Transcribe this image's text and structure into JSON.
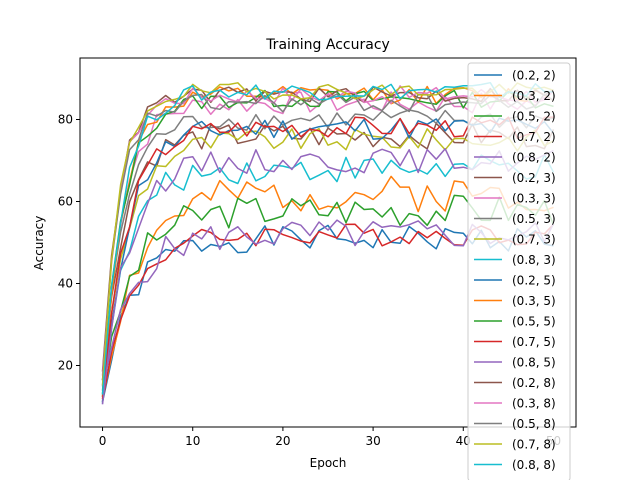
{
  "chart_data": {
    "type": "line",
    "title": "Training Accuracy",
    "xlabel": "Epoch",
    "ylabel": "Accuracy",
    "xlim": [
      -2.5,
      52.5
    ],
    "ylim": [
      5,
      95
    ],
    "xticks": [
      0,
      10,
      20,
      30,
      40,
      50
    ],
    "yticks": [
      20,
      40,
      60,
      80
    ],
    "grid": false,
    "legend_position": "right",
    "series": [
      {
        "name": "(0.2, 2)",
        "color": "#1f77b4",
        "start": 11,
        "plateau": 51,
        "rise": 7,
        "noise": 3.2,
        "seed": 1
      },
      {
        "name": "(0.3, 2)",
        "color": "#ff7f0e",
        "start": 12,
        "plateau": 62,
        "rise": 8,
        "noise": 4.5,
        "seed": 2
      },
      {
        "name": "(0.5, 2)",
        "color": "#2ca02c",
        "start": 13,
        "plateau": 58,
        "rise": 7,
        "noise": 4.0,
        "seed": 3
      },
      {
        "name": "(0.7, 2)",
        "color": "#d62728",
        "start": 12,
        "plateau": 52,
        "rise": 7,
        "noise": 2.8,
        "seed": 4
      },
      {
        "name": "(0.8, 2)",
        "color": "#9467bd",
        "start": 14,
        "plateau": 52,
        "rise": 7,
        "noise": 3.8,
        "seed": 5
      },
      {
        "name": "(0.2, 3)",
        "color": "#8c564b",
        "start": 16,
        "plateau": 76,
        "rise": 5,
        "noise": 3.2,
        "seed": 6
      },
      {
        "name": "(0.3, 3)",
        "color": "#e377c2",
        "start": 15,
        "plateau": 84,
        "rise": 5,
        "noise": 2.8,
        "seed": 7
      },
      {
        "name": "(0.5, 3)",
        "color": "#7f7f7f",
        "start": 14,
        "plateau": 80,
        "rise": 5,
        "noise": 2.6,
        "seed": 8
      },
      {
        "name": "(0.7, 3)",
        "color": "#bcbd22",
        "start": 13,
        "plateau": 75,
        "rise": 6,
        "noise": 2.8,
        "seed": 9
      },
      {
        "name": "(0.8, 3)",
        "color": "#17becf",
        "start": 12,
        "plateau": 68,
        "rise": 6,
        "noise": 3.4,
        "seed": 10
      },
      {
        "name": "(0.2, 5)",
        "color": "#1f77b4",
        "start": 10,
        "plateau": 78,
        "rise": 6,
        "noise": 3.0,
        "seed": 11
      },
      {
        "name": "(0.3, 5)",
        "color": "#ff7f0e",
        "start": 12,
        "plateau": 86,
        "rise": 5,
        "noise": 2.2,
        "seed": 12
      },
      {
        "name": "(0.5, 5)",
        "color": "#2ca02c",
        "start": 13,
        "plateau": 85,
        "rise": 5,
        "noise": 2.2,
        "seed": 13
      },
      {
        "name": "(0.7, 5)",
        "color": "#d62728",
        "start": 12,
        "plateau": 78,
        "rise": 6,
        "noise": 2.6,
        "seed": 14
      },
      {
        "name": "(0.8, 5)",
        "color": "#9467bd",
        "start": 11,
        "plateau": 70,
        "rise": 6,
        "noise": 3.0,
        "seed": 15
      },
      {
        "name": "(0.2, 8)",
        "color": "#8c564b",
        "start": 19,
        "plateau": 86,
        "rise": 4,
        "noise": 2.0,
        "seed": 16
      },
      {
        "name": "(0.3, 8)",
        "color": "#e377c2",
        "start": 17,
        "plateau": 86,
        "rise": 4,
        "noise": 2.2,
        "seed": 17
      },
      {
        "name": "(0.5, 8)",
        "color": "#7f7f7f",
        "start": 16,
        "plateau": 84,
        "rise": 4,
        "noise": 2.4,
        "seed": 18
      },
      {
        "name": "(0.7, 8)",
        "color": "#bcbd22",
        "start": 15,
        "plateau": 87,
        "rise": 4,
        "noise": 2.0,
        "seed": 19
      },
      {
        "name": "(0.8, 8)",
        "color": "#17becf",
        "start": 13,
        "plateau": 87,
        "rise": 5,
        "noise": 2.2,
        "seed": 20
      }
    ]
  }
}
